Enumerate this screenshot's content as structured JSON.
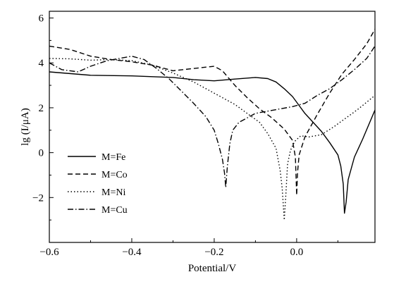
{
  "chart_data": {
    "type": "line",
    "xlabel": "Potential/V",
    "ylabel": "lg (I/μA)",
    "xlim": [
      -0.6,
      0.19
    ],
    "ylim": [
      -4.0,
      6.3
    ],
    "x_ticks": [
      -0.6,
      -0.4,
      -0.2,
      0.0
    ],
    "x_tick_labels": [
      "−0.6",
      "−0.4",
      "−0.2",
      "0.0"
    ],
    "y_ticks": [
      -2,
      0,
      2,
      4,
      6
    ],
    "y_tick_labels": [
      "−2",
      "0",
      "2",
      "4",
      "6"
    ],
    "grid": false,
    "legend_position": "bottom-left",
    "series": [
      {
        "name": "M=Fe",
        "dash": "solid",
        "x": [
          -0.6,
          -0.5,
          -0.4,
          -0.3,
          -0.25,
          -0.2,
          -0.15,
          -0.1,
          -0.07,
          -0.05,
          -0.03,
          -0.01,
          0.0,
          0.02,
          0.04,
          0.06,
          0.08,
          0.1,
          0.107,
          0.113,
          0.116,
          0.12,
          0.125,
          0.14,
          0.16,
          0.19
        ],
        "y": [
          3.6,
          3.45,
          3.42,
          3.35,
          3.25,
          3.2,
          3.28,
          3.35,
          3.3,
          3.15,
          2.85,
          2.5,
          2.25,
          1.75,
          1.35,
          0.95,
          0.45,
          -0.1,
          -0.6,
          -1.4,
          -2.7,
          -2.2,
          -1.2,
          -0.2,
          0.6,
          1.9
        ]
      },
      {
        "name": "M=Co",
        "dash": "dashed",
        "x": [
          -0.6,
          -0.55,
          -0.5,
          -0.45,
          -0.4,
          -0.35,
          -0.3,
          -0.25,
          -0.2,
          -0.18,
          -0.15,
          -0.12,
          -0.09,
          -0.06,
          -0.03,
          -0.01,
          -0.003,
          0.0,
          0.002,
          0.006,
          0.02,
          0.05,
          0.08,
          0.11,
          0.14,
          0.17,
          0.19
        ],
        "y": [
          4.75,
          4.6,
          4.3,
          4.15,
          4.05,
          3.9,
          3.65,
          3.75,
          3.85,
          3.65,
          3.0,
          2.45,
          1.95,
          1.55,
          1.05,
          0.55,
          -0.2,
          -1.9,
          -0.9,
          -0.1,
          0.7,
          1.7,
          2.65,
          3.5,
          4.15,
          4.85,
          5.5
        ]
      },
      {
        "name": "M=Ni",
        "dash": "dotted",
        "x": [
          -0.6,
          -0.55,
          -0.5,
          -0.45,
          -0.4,
          -0.35,
          -0.3,
          -0.25,
          -0.2,
          -0.15,
          -0.12,
          -0.09,
          -0.07,
          -0.05,
          -0.04,
          -0.035,
          -0.03,
          -0.026,
          -0.022,
          -0.015,
          -0.005,
          0.01,
          0.03,
          0.06,
          0.09,
          0.12,
          0.15,
          0.19
        ],
        "y": [
          4.2,
          4.18,
          4.12,
          4.15,
          4.1,
          3.9,
          3.55,
          3.15,
          2.65,
          2.15,
          1.75,
          1.35,
          0.85,
          0.2,
          -0.8,
          -1.6,
          -3.0,
          -1.8,
          -0.5,
          0.1,
          0.5,
          0.75,
          0.7,
          0.8,
          1.15,
          1.55,
          1.95,
          2.55
        ]
      },
      {
        "name": "M=Cu",
        "dash": "dashdot",
        "x": [
          -0.6,
          -0.57,
          -0.53,
          -0.5,
          -0.46,
          -0.43,
          -0.4,
          -0.37,
          -0.34,
          -0.31,
          -0.28,
          -0.25,
          -0.22,
          -0.2,
          -0.19,
          -0.18,
          -0.175,
          -0.172,
          -0.168,
          -0.162,
          -0.155,
          -0.14,
          -0.12,
          -0.1,
          -0.07,
          -0.04,
          -0.01,
          0.02,
          0.05,
          0.08,
          0.11,
          0.14,
          0.17,
          0.19
        ],
        "y": [
          4.0,
          3.7,
          3.6,
          3.85,
          4.1,
          4.2,
          4.3,
          4.15,
          3.75,
          3.3,
          2.75,
          2.2,
          1.6,
          1.0,
          0.4,
          -0.3,
          -0.9,
          -1.55,
          -0.6,
          0.4,
          1.0,
          1.35,
          1.55,
          1.75,
          1.85,
          1.95,
          2.05,
          2.2,
          2.55,
          2.85,
          3.25,
          3.7,
          4.2,
          4.75
        ]
      }
    ]
  }
}
